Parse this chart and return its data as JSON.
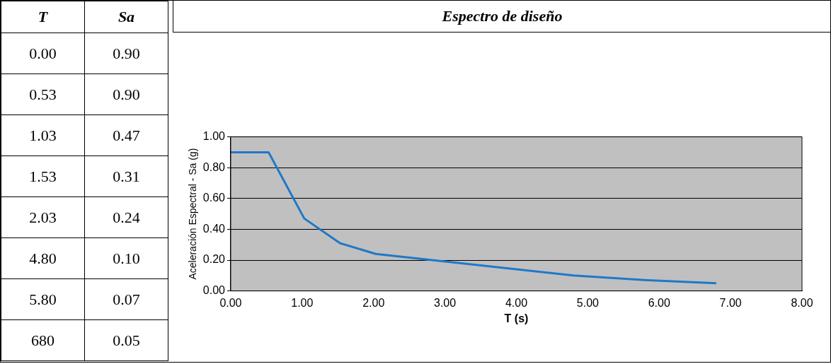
{
  "chart_data": {
    "type": "line",
    "title": "Espectro de diseño",
    "xlabel": "T (s)",
    "ylabel": "Aceleración Espectral - Sa (g)",
    "x": [
      0,
      0.53,
      1.03,
      1.53,
      2.03,
      4.8,
      5.8,
      6.8
    ],
    "series": [
      {
        "color": "#1f78c8",
        "values": [
          0.9,
          0.9,
          0.47,
          0.31,
          0.24,
          0.1,
          0.07,
          0.05
        ]
      }
    ],
    "xlim": [
      0,
      8
    ],
    "xticks": [
      {
        "value": 0,
        "label": "0.00"
      },
      {
        "value": 1,
        "label": "1.00"
      },
      {
        "value": 2,
        "label": "2.00"
      },
      {
        "value": 3,
        "label": "3.00"
      },
      {
        "value": 4,
        "label": "4.00"
      },
      {
        "value": 5,
        "label": "5.00"
      },
      {
        "value": 6,
        "label": "6.00"
      },
      {
        "value": 7,
        "label": "7.00"
      },
      {
        "value": 8,
        "label": "8.00"
      }
    ],
    "ylim": [
      0,
      1
    ],
    "yticks": [
      {
        "value": 0,
        "label": "0.00"
      },
      {
        "value": 0.2,
        "label": "0.20"
      },
      {
        "value": 0.4,
        "label": "0.40"
      },
      {
        "value": 0.6,
        "label": "0.60"
      },
      {
        "value": 0.8,
        "label": "0.80"
      },
      {
        "value": 1,
        "label": "1.00"
      }
    ],
    "grid": "y",
    "legend": false,
    "marker": "none",
    "line_style": "solid",
    "annotations": [
      "T",
      "Sa",
      "0.00",
      "0.90",
      "0.53",
      "0.90",
      "1.03",
      "0.47",
      "1.53",
      "0.31",
      "2.03",
      "0.24",
      "4.80",
      "0.10",
      "5.80",
      "0.07",
      "680",
      "0.05"
    ]
  }
}
